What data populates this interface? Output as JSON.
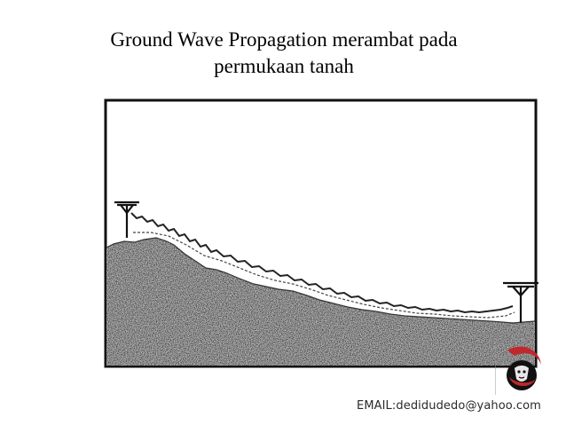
{
  "title": {
    "line1": "Ground Wave Propagation merambat pada",
    "line2": "permukaan tanah"
  },
  "footer": {
    "email": "EMAIL:dedidudedo@yahoo.com"
  },
  "icons": {
    "transmitter": "antenna-tower-icon",
    "receiver": "antenna-tower-icon",
    "logo": "author-logo-icon"
  },
  "colors": {
    "ground": "#b8b8b8",
    "frame": "#111111",
    "logo_accent": "#c0282b"
  }
}
